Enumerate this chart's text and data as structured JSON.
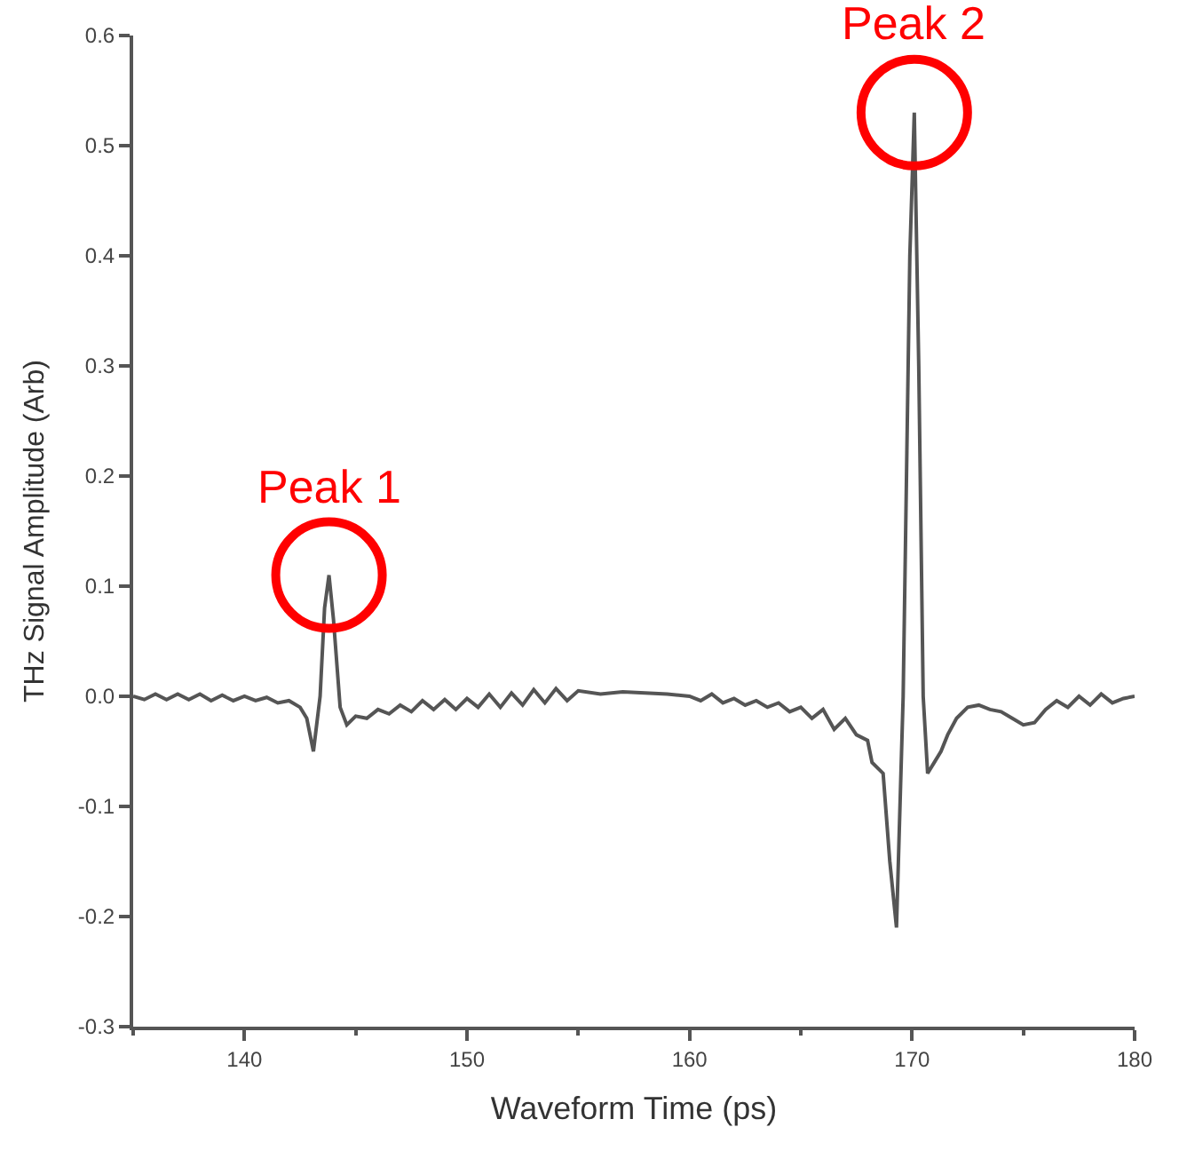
{
  "chart_data": {
    "type": "line",
    "xlabel": "Waveform Time (ps)",
    "ylabel": "THz Signal Amplitude (Arb)",
    "xlim": [
      135,
      180
    ],
    "xticks": [
      140,
      150,
      160,
      170,
      180
    ],
    "ylim": [
      -0.3,
      0.6
    ],
    "yticks": [
      -0.3,
      -0.2,
      -0.1,
      {
        "value": 0,
        "label": "0.0"
      },
      0.1,
      0.2,
      0.3,
      0.4,
      0.5,
      0.6
    ],
    "marker": "none",
    "line_style": "solid",
    "series": [
      {
        "color": "#555555",
        "x": [
          135,
          135.5,
          136,
          136.5,
          137,
          137.5,
          138,
          138.5,
          139,
          139.5,
          140,
          140.5,
          141,
          141.5,
          142,
          142.5,
          142.8,
          143.1,
          143.4,
          143.6,
          143.8,
          144.0,
          144.3,
          144.6,
          145,
          145.5,
          146,
          146.5,
          147,
          147.5,
          148,
          148.5,
          149,
          149.5,
          150,
          150.5,
          151,
          151.5,
          152,
          152.5,
          153,
          153.5,
          154,
          154.5,
          155,
          156,
          157,
          158,
          159,
          160,
          160.5,
          161,
          161.5,
          162,
          162.5,
          163,
          163.5,
          164,
          164.5,
          165,
          165.5,
          166,
          166.5,
          167,
          167.5,
          168,
          168.2,
          168.7,
          169.0,
          169.3,
          169.6,
          169.9,
          170.1,
          170.3,
          170.5,
          170.7,
          171,
          171.3,
          171.6,
          172,
          172.5,
          173,
          173.5,
          174,
          174.5,
          175,
          175.5,
          176,
          176.5,
          177,
          177.5,
          178,
          178.5,
          179,
          179.5,
          180
        ],
        "values": [
          0.0,
          -0.003,
          0.002,
          -0.003,
          0.002,
          -0.003,
          0.002,
          -0.004,
          0.001,
          -0.004,
          0.0,
          -0.004,
          -0.001,
          -0.006,
          -0.004,
          -0.01,
          -0.02,
          -0.05,
          0.0,
          0.08,
          0.11,
          0.07,
          -0.01,
          -0.026,
          -0.018,
          -0.02,
          -0.012,
          -0.016,
          -0.008,
          -0.014,
          -0.004,
          -0.012,
          -0.003,
          -0.012,
          -0.002,
          -0.01,
          0.002,
          -0.01,
          0.003,
          -0.008,
          0.006,
          -0.006,
          0.007,
          -0.004,
          0.005,
          0.002,
          0.004,
          0.003,
          0.002,
          0.0,
          -0.004,
          0.002,
          -0.006,
          -0.002,
          -0.008,
          -0.004,
          -0.01,
          -0.006,
          -0.014,
          -0.01,
          -0.02,
          -0.012,
          -0.03,
          -0.02,
          -0.035,
          -0.04,
          -0.06,
          -0.07,
          -0.15,
          -0.21,
          0.0,
          0.4,
          0.53,
          0.3,
          0.0,
          -0.07,
          -0.06,
          -0.05,
          -0.035,
          -0.02,
          -0.01,
          -0.008,
          -0.012,
          -0.014,
          -0.02,
          -0.026,
          -0.024,
          -0.012,
          -0.004,
          -0.01,
          0.0,
          -0.008,
          0.002,
          -0.006,
          -0.002,
          0.0
        ]
      }
    ],
    "annotations": [
      {
        "text": "Peak 1",
        "x": 143.8,
        "y": 0.11
      },
      {
        "text": "Peak 2",
        "x": 170.1,
        "y": 0.53
      }
    ]
  }
}
